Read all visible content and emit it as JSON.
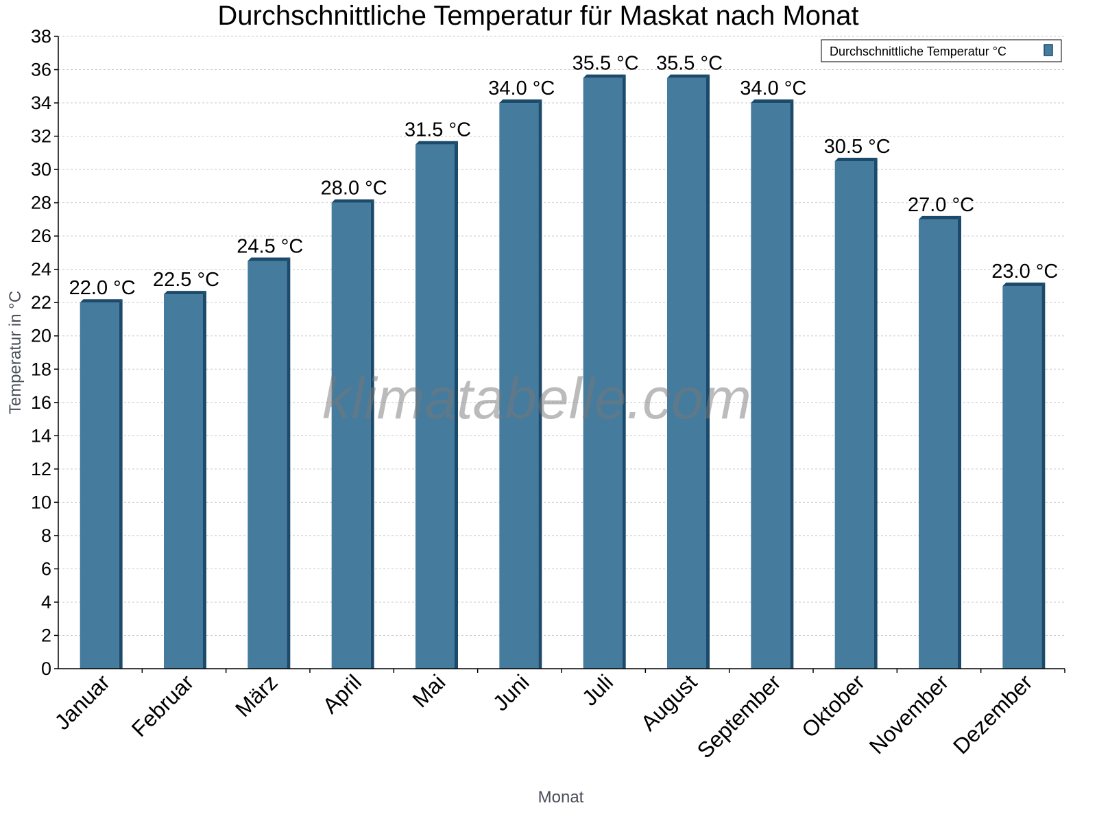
{
  "chart_data": {
    "type": "bar",
    "title": "Durchschnittliche Temperatur für Maskat nach Monat",
    "xlabel": "Monat",
    "ylabel": "Temperatur in °C",
    "categories": [
      "Januar",
      "Februar",
      "März",
      "April",
      "Mai",
      "Juni",
      "Juli",
      "August",
      "September",
      "Oktober",
      "November",
      "Dezember"
    ],
    "series": [
      {
        "name": "Durchschnittliche Temperatur °C",
        "values": [
          22.0,
          22.5,
          24.5,
          28.0,
          31.5,
          34.0,
          35.5,
          35.5,
          34.0,
          30.5,
          27.0,
          23.0
        ]
      }
    ],
    "data_labels": [
      "22.0 °C",
      "22.5 °C",
      "24.5 °C",
      "28.0 °C",
      "31.5 °C",
      "34.0 °C",
      "35.5 °C",
      "35.5 °C",
      "34.0 °C",
      "30.5 °C",
      "27.0 °C",
      "23.0 °C"
    ],
    "ylim": [
      0,
      38
    ],
    "yticks": [
      0,
      2,
      4,
      6,
      8,
      10,
      12,
      14,
      16,
      18,
      20,
      22,
      24,
      26,
      28,
      30,
      32,
      34,
      36,
      38
    ],
    "grid": true,
    "legend_position": "top-right",
    "colors": {
      "bar": "#457b9d",
      "bar_shade": "#1b4a6b",
      "grid": "#c8c8c8",
      "axis_label": "#4a4f57"
    },
    "watermark": "klimatabelle.com"
  }
}
